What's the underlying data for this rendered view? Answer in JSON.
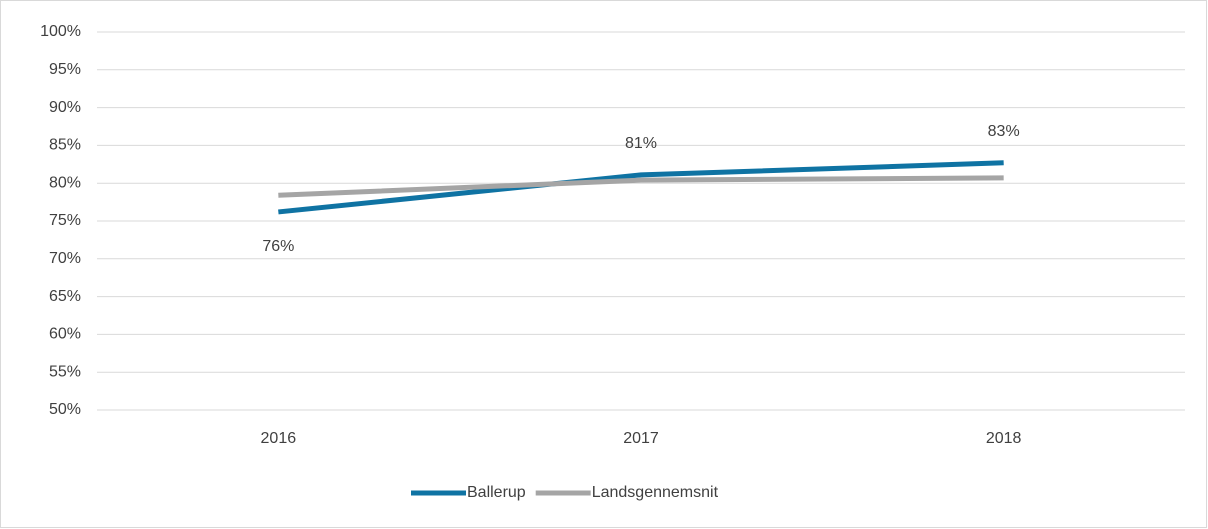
{
  "chart_data": {
    "type": "line",
    "categories": [
      "2016",
      "2017",
      "2018"
    ],
    "series": [
      {
        "name": "Ballerup",
        "color": "#0f73a3",
        "values": [
          76.2,
          81.1,
          82.7
        ],
        "value_labels": [
          "76%",
          "81%",
          "83%"
        ]
      },
      {
        "name": "Landsgennemsnit",
        "color": "#a5a5a5",
        "values": [
          78.4,
          80.4,
          80.7
        ]
      }
    ],
    "ylim": [
      50,
      100
    ],
    "yticks": [
      {
        "value": 50,
        "label": "50%"
      },
      {
        "value": 55,
        "label": "55%"
      },
      {
        "value": 60,
        "label": "60%"
      },
      {
        "value": 65,
        "label": "65%"
      },
      {
        "value": 70,
        "label": "70%"
      },
      {
        "value": 75,
        "label": "75%"
      },
      {
        "value": 80,
        "label": "80%"
      },
      {
        "value": 85,
        "label": "85%"
      },
      {
        "value": 90,
        "label": "90%"
      },
      {
        "value": 95,
        "label": "95%"
      },
      {
        "value": 100,
        "label": "100%"
      }
    ],
    "grid": true,
    "legend": "bottom"
  }
}
